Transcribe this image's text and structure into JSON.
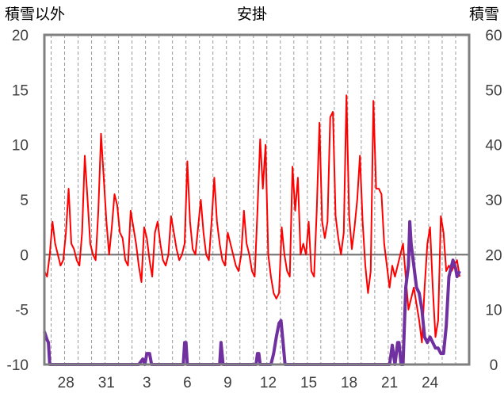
{
  "chart_data": {
    "type": "line",
    "title": "安掛",
    "ylabel_left": "積雪以外",
    "ylabel_right": "積雪",
    "ylim_left": [
      -10,
      20
    ],
    "ylim_right": [
      0,
      60
    ],
    "yticks_left": [
      "20",
      "15",
      "10",
      "5",
      "0",
      "-5",
      "-10"
    ],
    "yticks_right": [
      "60",
      "50",
      "40",
      "30",
      "20",
      "10",
      "0"
    ],
    "xlim": [
      26.4,
      25.7
    ],
    "xticks": [
      "28",
      "31",
      "3",
      "6",
      "9",
      "12",
      "15",
      "18",
      "21",
      "24"
    ],
    "grid": "vertical dashed, one line per day",
    "zero_line": true,
    "series": [
      {
        "axis": "left",
        "color": "#ff0000",
        "points": [
          [
            0.0,
            -1.5
          ],
          [
            0.2,
            -2.0
          ],
          [
            0.4,
            0.0
          ],
          [
            0.6,
            3.0
          ],
          [
            0.8,
            1.0
          ],
          [
            1.0,
            0.0
          ],
          [
            1.2,
            -1.0
          ],
          [
            1.4,
            -0.5
          ],
          [
            1.6,
            2.0
          ],
          [
            1.8,
            6.0
          ],
          [
            2.0,
            1.0
          ],
          [
            2.2,
            0.5
          ],
          [
            2.4,
            -0.5
          ],
          [
            2.6,
            -1.0
          ],
          [
            2.8,
            2.0
          ],
          [
            3.0,
            9.0
          ],
          [
            3.2,
            5.0
          ],
          [
            3.4,
            1.0
          ],
          [
            3.6,
            0.0
          ],
          [
            3.8,
            -0.5
          ],
          [
            4.0,
            4.0
          ],
          [
            4.2,
            11.0
          ],
          [
            4.4,
            7.0
          ],
          [
            4.6,
            3.0
          ],
          [
            4.8,
            0.0
          ],
          [
            5.0,
            2.5
          ],
          [
            5.2,
            5.5
          ],
          [
            5.4,
            4.5
          ],
          [
            5.6,
            2.0
          ],
          [
            5.8,
            1.5
          ],
          [
            6.0,
            -0.5
          ],
          [
            6.2,
            -1.0
          ],
          [
            6.4,
            4.0
          ],
          [
            6.6,
            2.5
          ],
          [
            6.8,
            1.0
          ],
          [
            7.0,
            -1.0
          ],
          [
            7.2,
            -2.5
          ],
          [
            7.4,
            2.5
          ],
          [
            7.6,
            1.5
          ],
          [
            7.8,
            -0.5
          ],
          [
            8.0,
            -2.0
          ],
          [
            8.2,
            2.0
          ],
          [
            8.4,
            3.0
          ],
          [
            8.6,
            1.0
          ],
          [
            8.8,
            -0.5
          ],
          [
            9.0,
            -1.0
          ],
          [
            9.2,
            0.0
          ],
          [
            9.4,
            3.5
          ],
          [
            9.6,
            2.0
          ],
          [
            9.8,
            0.5
          ],
          [
            10.0,
            -0.5
          ],
          [
            10.2,
            0.0
          ],
          [
            10.4,
            1.0
          ],
          [
            10.6,
            8.5
          ],
          [
            10.8,
            3.0
          ],
          [
            11.0,
            0.5
          ],
          [
            11.2,
            0.0
          ],
          [
            11.4,
            2.5
          ],
          [
            11.6,
            5.0
          ],
          [
            11.8,
            2.0
          ],
          [
            12.0,
            0.0
          ],
          [
            12.2,
            -0.5
          ],
          [
            12.4,
            3.0
          ],
          [
            12.6,
            7.0
          ],
          [
            12.8,
            3.0
          ],
          [
            13.0,
            1.0
          ],
          [
            13.2,
            -0.5
          ],
          [
            13.4,
            -1.0
          ],
          [
            13.6,
            2.0
          ],
          [
            13.8,
            1.0
          ],
          [
            14.0,
            0.0
          ],
          [
            14.2,
            -1.0
          ],
          [
            14.4,
            -1.5
          ],
          [
            14.6,
            0.0
          ],
          [
            14.8,
            4.0
          ],
          [
            15.0,
            1.0
          ],
          [
            15.2,
            0.0
          ],
          [
            15.4,
            -1.5
          ],
          [
            15.6,
            -2.0
          ],
          [
            15.8,
            4.0
          ],
          [
            16.0,
            10.5
          ],
          [
            16.2,
            6.0
          ],
          [
            16.4,
            10.0
          ],
          [
            16.6,
            0.0
          ],
          [
            16.8,
            -2.0
          ],
          [
            17.0,
            -3.5
          ],
          [
            17.2,
            -4.0
          ],
          [
            17.4,
            -3.5
          ],
          [
            17.6,
            2.5
          ],
          [
            17.8,
            0.0
          ],
          [
            18.0,
            -1.5
          ],
          [
            18.2,
            -2.0
          ],
          [
            18.4,
            8.0
          ],
          [
            18.6,
            4.0
          ],
          [
            18.8,
            7.0
          ],
          [
            19.0,
            0.0
          ],
          [
            19.2,
            1.0
          ],
          [
            19.4,
            0.0
          ],
          [
            19.6,
            3.0
          ],
          [
            19.8,
            -1.5
          ],
          [
            20.0,
            -2.0
          ],
          [
            20.2,
            4.0
          ],
          [
            20.4,
            12.0
          ],
          [
            20.6,
            3.0
          ],
          [
            20.8,
            1.5
          ],
          [
            21.0,
            3.0
          ],
          [
            21.2,
            12.5
          ],
          [
            21.4,
            13.0
          ],
          [
            21.6,
            3.5
          ],
          [
            21.8,
            1.5
          ],
          [
            22.0,
            0.0
          ],
          [
            22.2,
            2.0
          ],
          [
            22.4,
            14.5
          ],
          [
            22.6,
            3.5
          ],
          [
            22.8,
            0.5
          ],
          [
            23.0,
            2.5
          ],
          [
            23.2,
            5.0
          ],
          [
            23.4,
            9.0
          ],
          [
            23.6,
            3.0
          ],
          [
            23.8,
            -1.0
          ],
          [
            24.0,
            -3.5
          ],
          [
            24.2,
            -1.5
          ],
          [
            24.4,
            14.0
          ],
          [
            24.6,
            6.0
          ],
          [
            24.8,
            6.0
          ],
          [
            25.0,
            5.5
          ],
          [
            25.2,
            1.0
          ],
          [
            25.4,
            -1.0
          ],
          [
            25.6,
            -3.0
          ],
          [
            25.8,
            -1.0
          ],
          [
            26.0,
            -2.0
          ],
          [
            26.2,
            -1.0
          ],
          [
            26.4,
            0.0
          ],
          [
            26.6,
            1.0
          ],
          [
            26.8,
            -2.0
          ],
          [
            27.0,
            -5.0
          ],
          [
            27.2,
            -4.0
          ],
          [
            27.4,
            -3.0
          ],
          [
            27.6,
            -4.5
          ],
          [
            27.8,
            -6.0
          ],
          [
            28.0,
            -8.0
          ],
          [
            28.2,
            -3.0
          ],
          [
            28.4,
            1.0
          ],
          [
            28.6,
            2.5
          ],
          [
            28.8,
            -3.0
          ],
          [
            29.0,
            -7.5
          ],
          [
            29.2,
            -6.0
          ],
          [
            29.4,
            3.5
          ],
          [
            29.6,
            2.0
          ],
          [
            29.8,
            -1.5
          ],
          [
            30.0,
            -1.0
          ],
          [
            30.2,
            -1.5
          ],
          [
            30.4,
            -1.0
          ],
          [
            30.6,
            -0.5
          ],
          [
            30.8,
            -2.0
          ]
        ]
      },
      {
        "axis": "right",
        "color": "#7030a0",
        "points": [
          [
            0.0,
            6.0
          ],
          [
            0.2,
            4.5
          ],
          [
            0.3,
            4.0
          ],
          [
            0.4,
            0.0
          ],
          [
            1.0,
            0.0
          ],
          [
            7.0,
            0.0
          ],
          [
            7.3,
            1.0
          ],
          [
            7.45,
            0.0
          ],
          [
            7.6,
            2.0
          ],
          [
            7.8,
            2.0
          ],
          [
            7.95,
            0.0
          ],
          [
            10.3,
            0.0
          ],
          [
            10.4,
            4.0
          ],
          [
            10.5,
            4.0
          ],
          [
            10.6,
            0.0
          ],
          [
            13.0,
            0.0
          ],
          [
            13.1,
            4.0
          ],
          [
            13.25,
            0.0
          ],
          [
            15.7,
            0.0
          ],
          [
            15.8,
            2.0
          ],
          [
            15.9,
            2.0
          ],
          [
            16.0,
            0.0
          ],
          [
            16.8,
            0.0
          ],
          [
            17.0,
            2.0
          ],
          [
            17.2,
            5.0
          ],
          [
            17.4,
            7.5
          ],
          [
            17.55,
            8.0
          ],
          [
            17.7,
            4.0
          ],
          [
            17.85,
            0.0
          ],
          [
            25.6,
            0.0
          ],
          [
            25.8,
            3.5
          ],
          [
            26.0,
            0.0
          ],
          [
            26.2,
            4.0
          ],
          [
            26.3,
            4.0
          ],
          [
            26.45,
            0.0
          ],
          [
            26.6,
            0.0
          ],
          [
            26.8,
            14.0
          ],
          [
            27.0,
            18.0
          ],
          [
            27.1,
            26.0
          ],
          [
            27.2,
            22.0
          ],
          [
            27.4,
            18.0
          ],
          [
            27.6,
            14.0
          ],
          [
            27.8,
            13.0
          ],
          [
            28.0,
            10.0
          ],
          [
            28.2,
            5.0
          ],
          [
            28.4,
            4.0
          ],
          [
            28.6,
            5.0
          ],
          [
            28.8,
            4.0
          ],
          [
            29.0,
            3.0
          ],
          [
            29.2,
            3.0
          ],
          [
            29.4,
            2.0
          ],
          [
            29.6,
            2.0
          ],
          [
            29.8,
            7.0
          ],
          [
            30.0,
            16.0
          ],
          [
            30.2,
            18.0
          ],
          [
            30.3,
            19.0
          ],
          [
            30.5,
            17.5
          ],
          [
            30.6,
            16.0
          ],
          [
            30.8,
            17.0
          ]
        ]
      }
    ]
  }
}
